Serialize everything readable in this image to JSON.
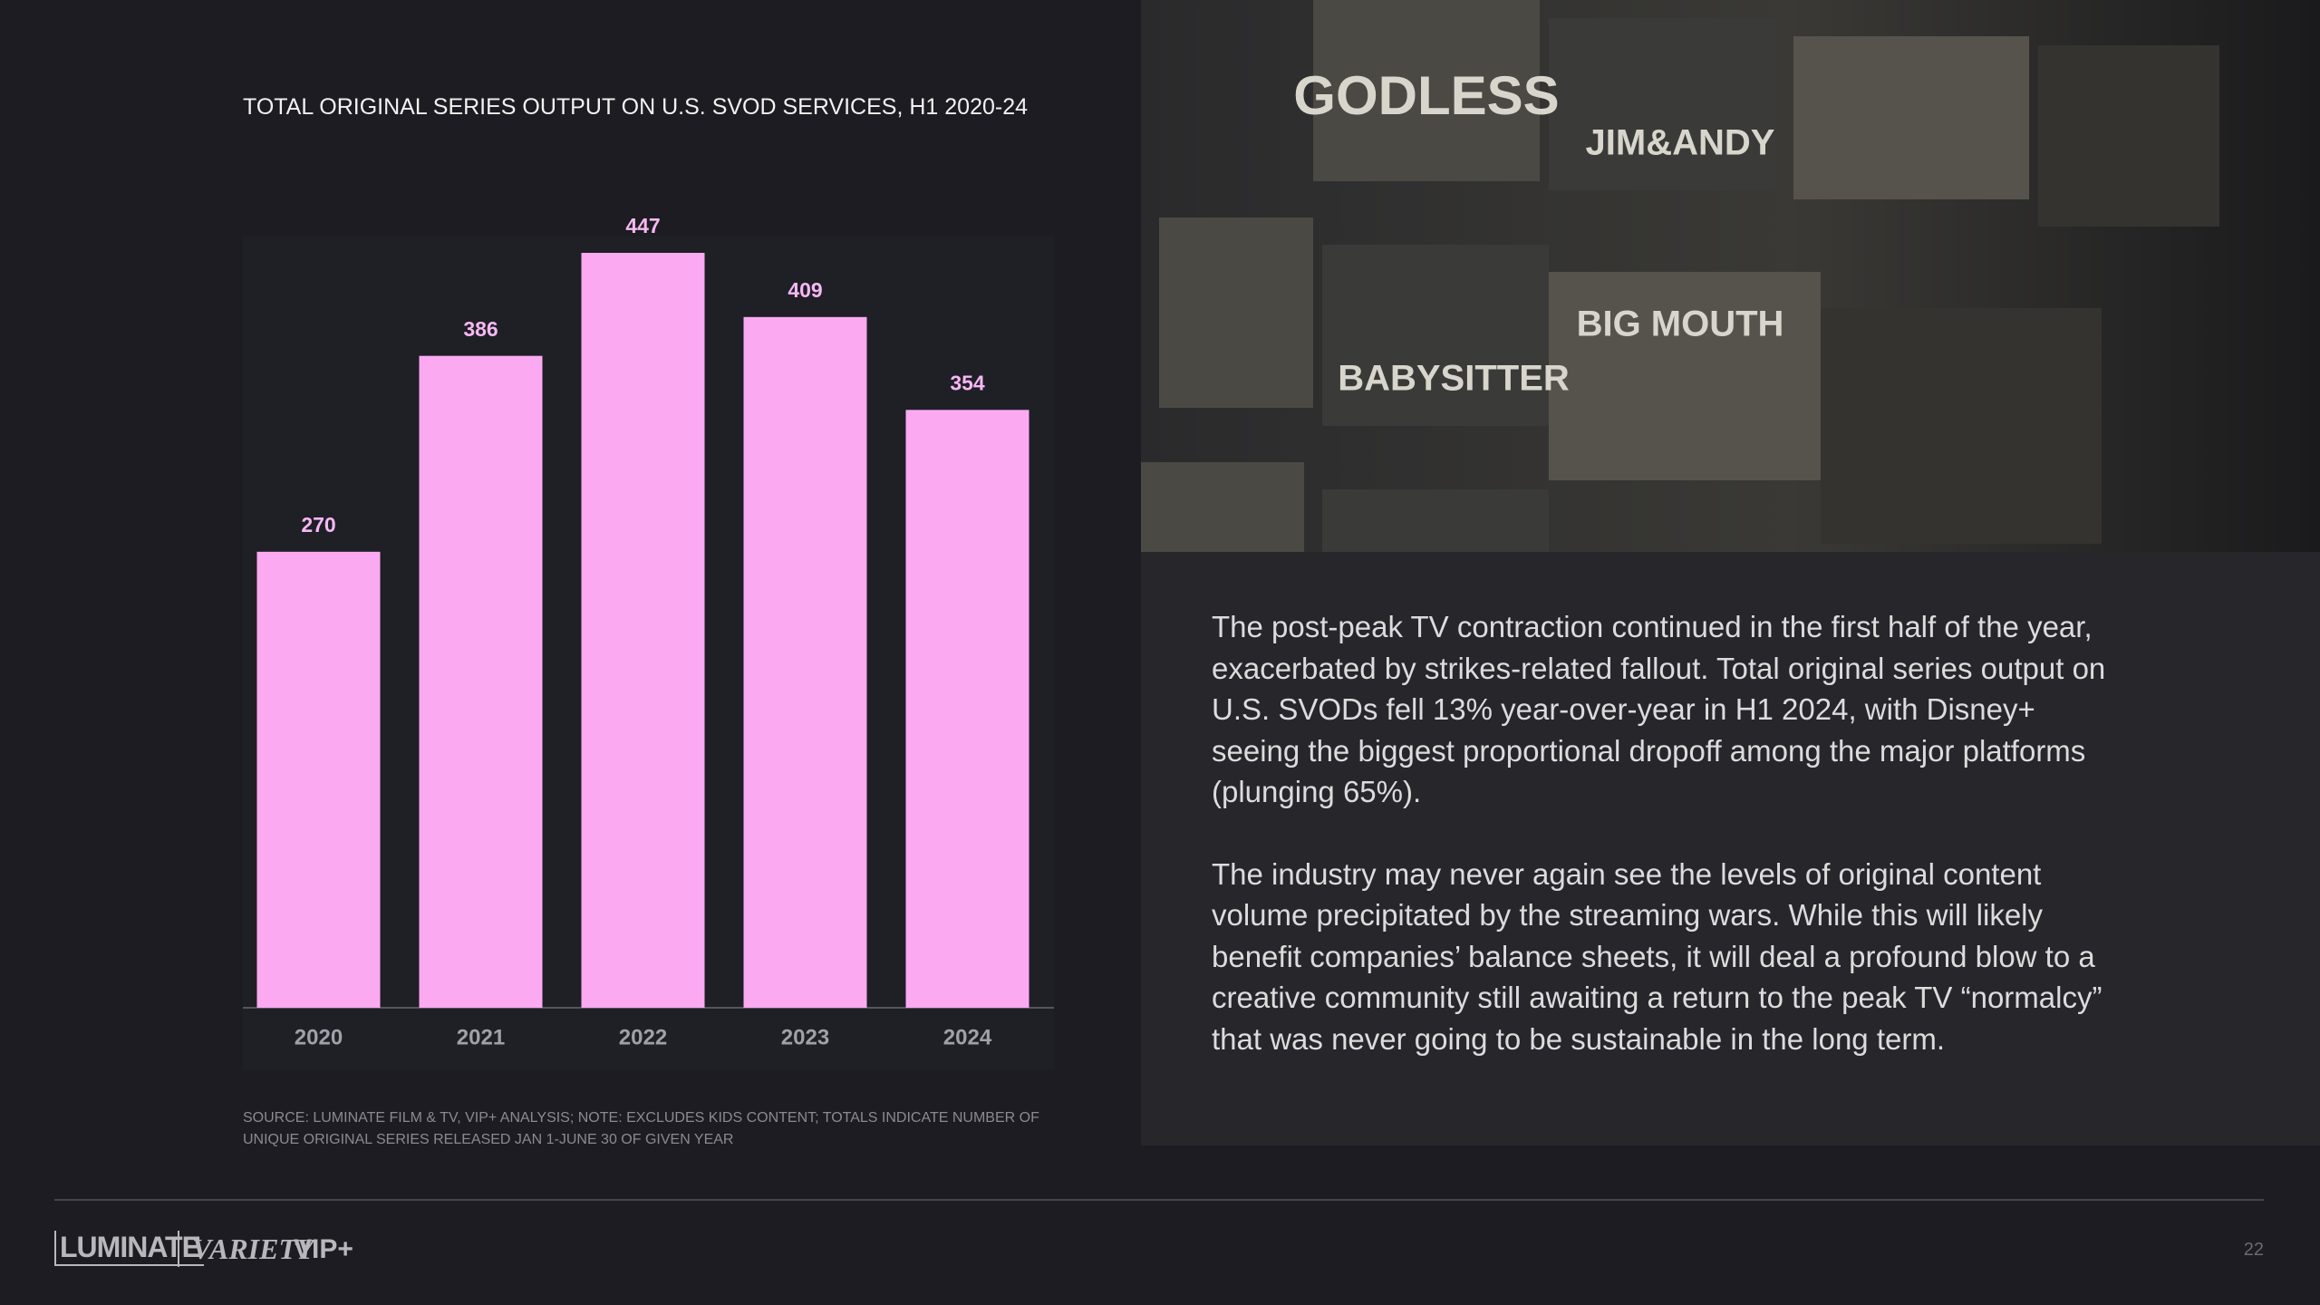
{
  "chart_data": {
    "type": "bar",
    "title": "TOTAL ORIGINAL SERIES OUTPUT ON U.S. SVOD SERVICES, H1 2020-24",
    "categories": [
      "2020",
      "2021",
      "2022",
      "2023",
      "2024"
    ],
    "values": [
      270,
      386,
      447,
      409,
      354
    ],
    "color": "#fbaaf2"
  },
  "source_note": "SOURCE: LUMINATE FILM & TV, VIP+ ANALYSIS; NOTE: EXCLUDES KIDS CONTENT; TOTALS INDICATE NUMBER OF UNIQUE ORIGINAL SERIES RELEASED JAN 1-JUNE 30 OF GIVEN YEAR",
  "posters": [
    "GODLESS",
    "JIM&ANDY",
    "BIG MOUTH",
    "BABYSITTER"
  ],
  "body": {
    "paragraphs": [
      "The post-peak TV contraction continued in the first half of the year, exacerbated by strikes-related fallout. Total original series output on U.S. SVODs fell 13% year-over-year in H1 2024, with Disney+ seeing the biggest proportional dropoff among the major platforms (plunging 65%).",
      "The industry may never again see the levels of original content volume precipitated by the streaming wars. While this will likely benefit companies’ balance sheets, it will deal a profound blow to a creative community still awaiting a return to the peak TV “normalcy” that was never going to be sustainable in the long term."
    ]
  },
  "footer": {
    "brand": "LUMINATE",
    "partner": "VARIETY",
    "partner_suffix": "VIP+",
    "page": "22"
  }
}
